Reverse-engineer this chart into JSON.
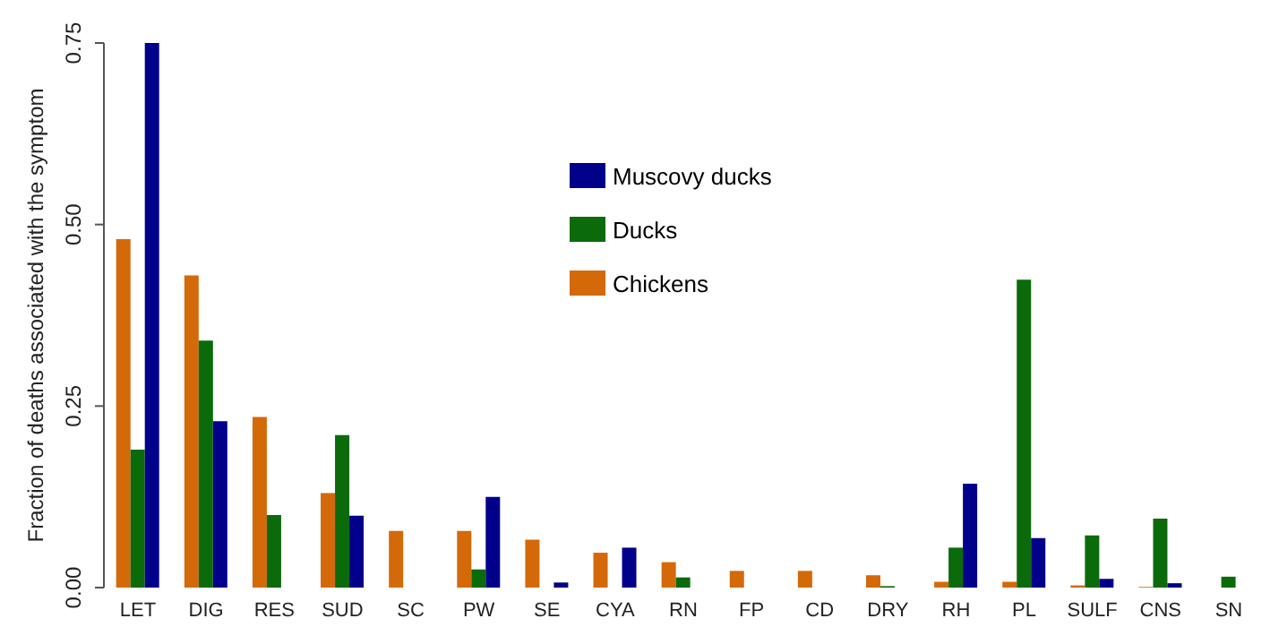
{
  "chart_data": {
    "type": "bar",
    "ylabel": "Fraction of deaths associated with the symptom",
    "categories": [
      "LET",
      "DIG",
      "RES",
      "SUD",
      "SC",
      "PW",
      "SE",
      "CYA",
      "RN",
      "FP",
      "CD",
      "DRY",
      "RH",
      "PL",
      "SULF",
      "CNS",
      "SN"
    ],
    "series": [
      {
        "name": "Chickens",
        "color": "#d4690a",
        "values": [
          0.48,
          0.43,
          0.235,
          0.13,
          0.078,
          0.078,
          0.066,
          0.048,
          0.035,
          0.023,
          0.023,
          0.017,
          0.008,
          0.008,
          0.003,
          0.001,
          0
        ]
      },
      {
        "name": "Ducks",
        "color": "#0b6b0b",
        "values": [
          0.19,
          0.34,
          0.1,
          0.21,
          0,
          0.025,
          0,
          0,
          0.014,
          0,
          0,
          0.002,
          0.055,
          0.424,
          0.072,
          0.095,
          0.015
        ]
      },
      {
        "name": "Muscovy ducks",
        "color": "#00008b",
        "values": [
          0.75,
          0.229,
          0,
          0.099,
          0,
          0.125,
          0.007,
          0.055,
          0,
          0,
          0,
          0,
          0.143,
          0.068,
          0.012,
          0.006,
          0
        ]
      }
    ],
    "ylim": [
      0,
      0.75
    ],
    "yticks": [
      {
        "value": 0,
        "label": "0.00"
      },
      {
        "value": 0.25,
        "label": "0.25"
      },
      {
        "value": 0.5,
        "label": "0.50"
      },
      {
        "value": 0.75,
        "label": "0.75"
      }
    ],
    "grid": false,
    "legend": "top"
  }
}
